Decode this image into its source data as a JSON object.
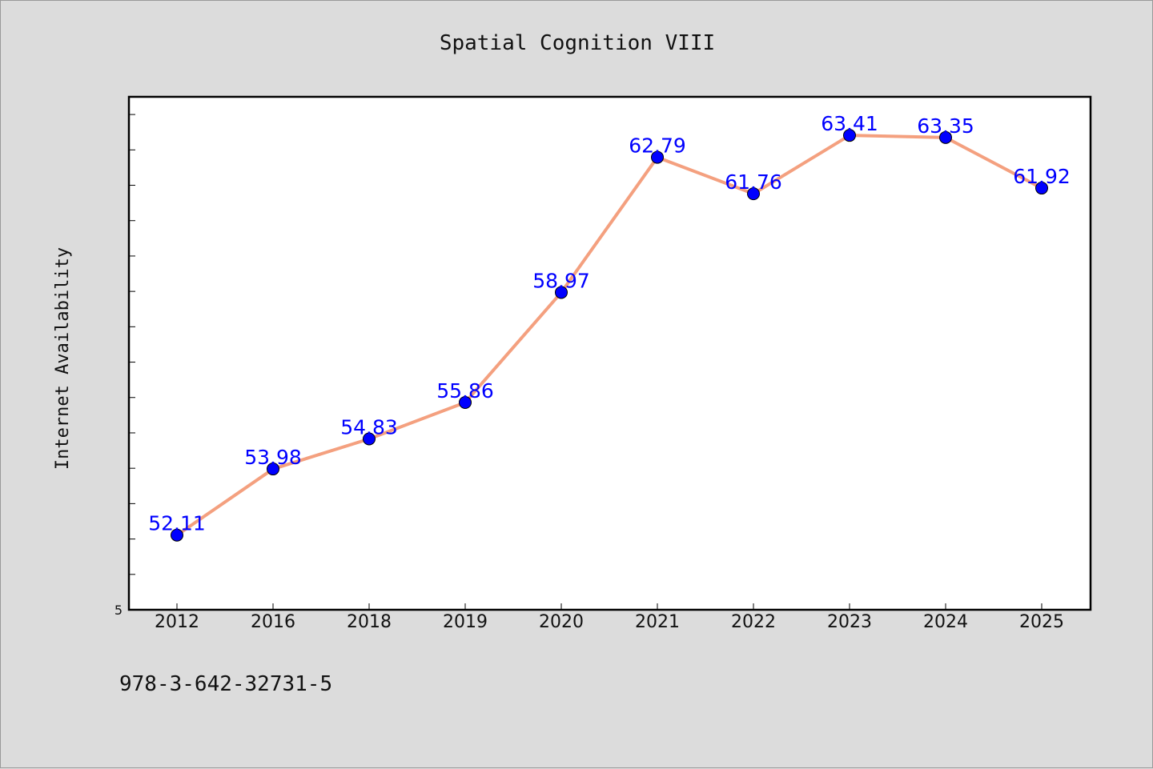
{
  "chart_data": {
    "type": "line",
    "title": "Spatial Cognition VIII",
    "xlabel": "",
    "ylabel": "Internet Availability",
    "categories": [
      "2012",
      "2016",
      "2018",
      "2019",
      "2020",
      "2021",
      "2022",
      "2023",
      "2024",
      "2025"
    ],
    "series": [
      {
        "values": [
          52.11,
          53.98,
          54.83,
          55.86,
          58.97,
          62.79,
          61.76,
          63.41,
          63.35,
          61.92
        ],
        "labels": [
          "52.11",
          "53.98",
          "54.83",
          "55.86",
          "58.97",
          "62.79",
          "61.76",
          "63.41",
          "63.35",
          "61.92"
        ],
        "line_color": "#f4a07f",
        "marker_color": "#0000ff"
      }
    ],
    "ylim": [
      50,
      64.5
    ],
    "yticks": [
      5
    ],
    "grid": false,
    "legend": "none"
  },
  "footer": {
    "isbn": "978-3-642-32731-5"
  },
  "colors": {
    "background": "#dcdcdc",
    "plot_background": "#ffffff",
    "line": "#f4a07f",
    "marker": "#0000ff",
    "data_label": "#0000ff"
  }
}
